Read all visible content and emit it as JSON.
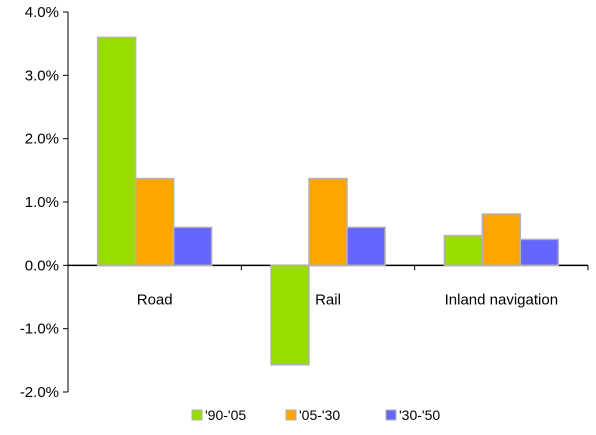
{
  "chart_data": {
    "type": "bar",
    "categories": [
      "Road",
      "Rail",
      "Inland navigation"
    ],
    "series": [
      {
        "name": "'90-'05",
        "values": [
          3.6,
          -1.57,
          0.47
        ],
        "color": "#99dd00"
      },
      {
        "name": "'05-'30",
        "values": [
          1.37,
          1.37,
          0.81
        ],
        "color": "#ffa500"
      },
      {
        "name": "'30-'50",
        "values": [
          0.6,
          0.6,
          0.41
        ],
        "color": "#6666ff"
      }
    ],
    "ylim": [
      -2.0,
      4.0
    ],
    "yticks": [
      -2.0,
      -1.0,
      0.0,
      1.0,
      2.0,
      3.0,
      4.0
    ],
    "ytick_labels": [
      "-2.0%",
      "-1.0%",
      "0.0%",
      "1.0%",
      "2.0%",
      "3.0%",
      "4.0%"
    ],
    "bar_stroke": "#b3b3b3",
    "grid": false,
    "legend_position": "bottom"
  }
}
